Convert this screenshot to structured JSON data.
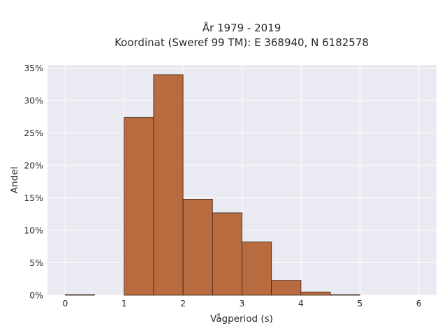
{
  "chart_data": {
    "type": "bar",
    "title_line1": "År 1979 - 2019",
    "title_line2": "Koordinat (Sweref 99 TM): E 368940, N 6182578",
    "xlabel": "Vågperiod (s)",
    "ylabel": "Andel",
    "xlim": [
      -0.3,
      6.3
    ],
    "ylim": [
      0,
      0.355
    ],
    "x_ticks": [
      0,
      1,
      2,
      3,
      4,
      5,
      6
    ],
    "y_ticks": [
      0,
      0.05,
      0.1,
      0.15,
      0.2,
      0.25,
      0.3,
      0.35
    ],
    "y_tick_labels": [
      "0%",
      "5%",
      "10%",
      "15%",
      "20%",
      "25%",
      "30%",
      "35%"
    ],
    "grid": true,
    "bar_color": "#b86b3f",
    "background_color": "#eaeaf2",
    "bins": [
      {
        "x0": 0.0,
        "x1": 0.5,
        "value": 0.0005
      },
      {
        "x0": 0.5,
        "x1": 1.0,
        "value": 0.0
      },
      {
        "x0": 1.0,
        "x1": 1.5,
        "value": 0.274
      },
      {
        "x0": 1.5,
        "x1": 2.0,
        "value": 0.34
      },
      {
        "x0": 2.0,
        "x1": 2.5,
        "value": 0.148
      },
      {
        "x0": 2.5,
        "x1": 3.0,
        "value": 0.127
      },
      {
        "x0": 3.0,
        "x1": 3.5,
        "value": 0.082
      },
      {
        "x0": 3.5,
        "x1": 4.0,
        "value": 0.023
      },
      {
        "x0": 4.0,
        "x1": 4.5,
        "value": 0.005
      },
      {
        "x0": 4.5,
        "x1": 5.0,
        "value": 0.0005
      }
    ]
  }
}
